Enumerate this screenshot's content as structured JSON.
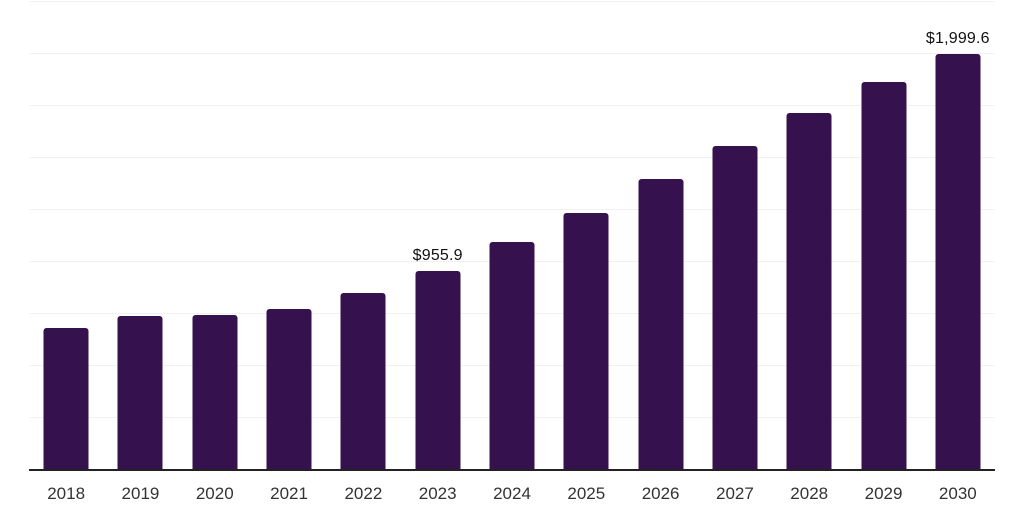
{
  "chart_data": {
    "type": "bar",
    "title": "",
    "xlabel": "",
    "ylabel": "",
    "categories": [
      "2018",
      "2019",
      "2020",
      "2021",
      "2022",
      "2023",
      "2024",
      "2025",
      "2026",
      "2027",
      "2028",
      "2029",
      "2030"
    ],
    "values": [
      681,
      740,
      743,
      774,
      851,
      955.9,
      1097,
      1234,
      1397,
      1557,
      1716,
      1864,
      1999.6
    ],
    "labeled_points": [
      {
        "category": "2023",
        "label": "$955.9"
      },
      {
        "category": "2030",
        "label": "$1,999.6"
      }
    ],
    "ylim": [
      0,
      2250
    ],
    "grid_step": 250,
    "grid": "horizontal-only",
    "y_tick_labels_visible": false,
    "legend_position": "none",
    "colors": {
      "bar": "#35124E",
      "gridline": "#F1F1F2",
      "axis_line": "#222222",
      "tick_label": "#333333",
      "value_label": "#111111",
      "background": "#FFFFFF"
    }
  }
}
